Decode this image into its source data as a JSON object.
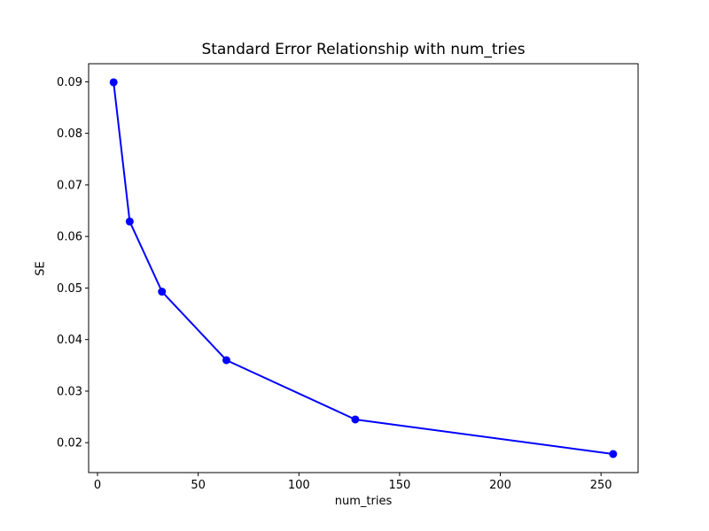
{
  "figure": {
    "background_color": "#ffffff",
    "spine_color": "#000000",
    "tick_color": "#000000"
  },
  "chart_data": {
    "type": "line",
    "title": "Standard Error Relationship with num_tries",
    "xlabel": "num_tries",
    "ylabel": "SE",
    "x": [
      8,
      16,
      32,
      64,
      128,
      256
    ],
    "y": [
      0.0899,
      0.0629,
      0.0493,
      0.036,
      0.0245,
      0.0178
    ],
    "line_color": "#0000ff",
    "marker": "o",
    "marker_color": "#0000ff",
    "grid": false,
    "legend_position": "none",
    "xlim": [
      -4.4,
      268.4
    ],
    "ylim": [
      0.0142,
      0.0935
    ],
    "xticks": [
      0,
      50,
      100,
      150,
      200,
      250
    ],
    "xtick_labels": [
      "0",
      "50",
      "100",
      "150",
      "200",
      "250"
    ],
    "yticks": [
      0.02,
      0.03,
      0.04,
      0.05,
      0.06,
      0.07,
      0.08,
      0.09
    ],
    "ytick_labels": [
      "0.02",
      "0.03",
      "0.04",
      "0.05",
      "0.06",
      "0.07",
      "0.08",
      "0.09"
    ]
  }
}
